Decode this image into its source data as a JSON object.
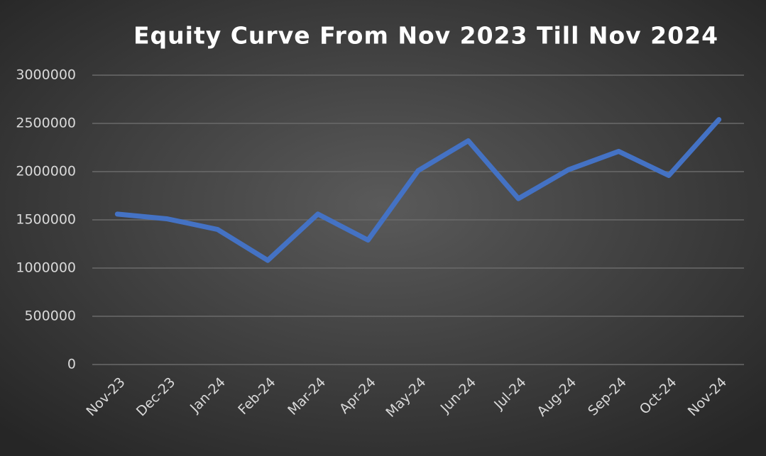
{
  "chart_data": {
    "type": "line",
    "title": "Equity Curve From Nov 2023 Till Nov 2024",
    "categories": [
      "Nov-23",
      "Dec-23",
      "Jan-24",
      "Feb-24",
      "Mar-24",
      "Apr-24",
      "May-24",
      "Jun-24",
      "Jul-24",
      "Aug-24",
      "Sep-24",
      "Oct-24",
      "Nov-24"
    ],
    "values": [
      1560000,
      1510000,
      1400000,
      1080000,
      1560000,
      1290000,
      2010000,
      2320000,
      1720000,
      2020000,
      2210000,
      1960000,
      2540000
    ],
    "color": "#4472c4",
    "ylim": [
      0,
      3000000
    ],
    "yticks": [
      0,
      500000,
      1000000,
      1500000,
      2000000,
      2500000,
      3000000
    ],
    "grid": true
  }
}
